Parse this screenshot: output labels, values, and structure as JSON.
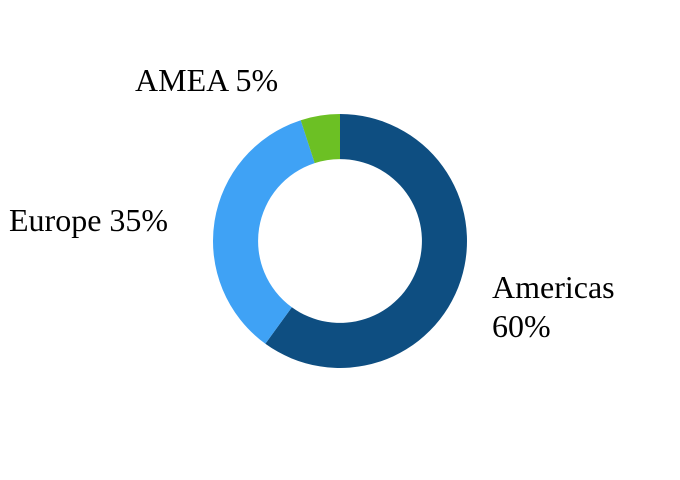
{
  "chart_data": {
    "type": "pie",
    "donut": true,
    "title": "",
    "categories": [
      "Americas",
      "Europe",
      "AMEA"
    ],
    "values": [
      60,
      35,
      5
    ],
    "unit": "%",
    "colors": [
      "#0E4E81",
      "#3FA2F5",
      "#6CC024"
    ],
    "start_angle_deg": 0,
    "direction": "clockwise",
    "inner_radius_ratio": 0.645,
    "legend_position": "none",
    "grid": false,
    "background": "#FFFFFF",
    "data_labels": [
      "Americas 60%",
      "Europe 35%",
      "AMEA 5%"
    ]
  }
}
